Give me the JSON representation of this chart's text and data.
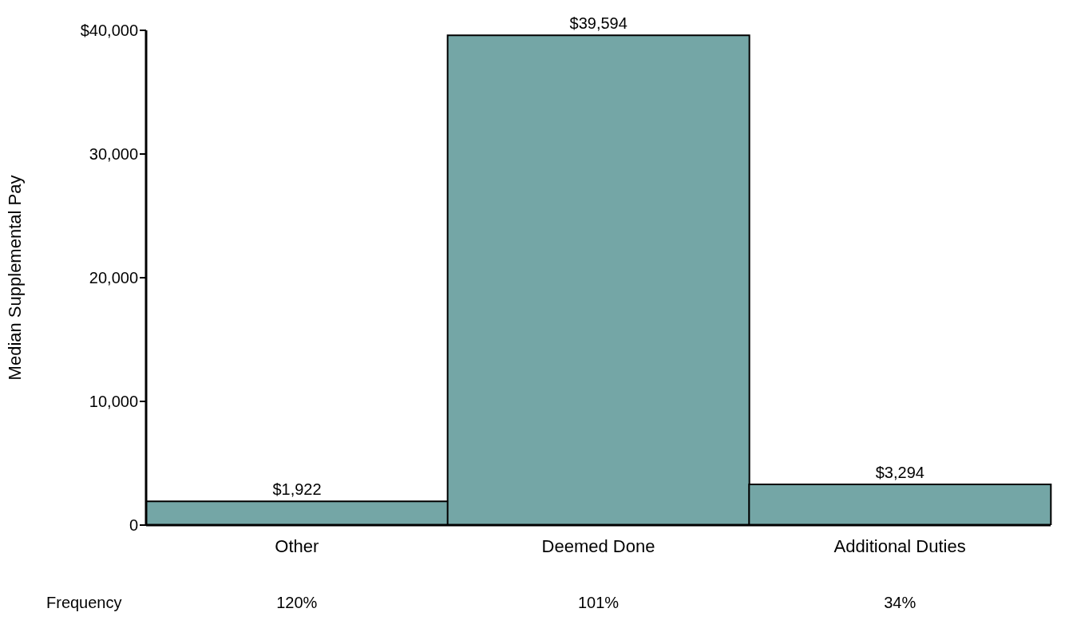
{
  "chart_data": {
    "type": "bar",
    "ylabel": "Median Supplemental Pay",
    "categories": [
      "Other",
      "Deemed Done",
      "Additional Duties"
    ],
    "values": [
      1922,
      39594,
      3294
    ],
    "value_labels": [
      "$1,922",
      "$39,594",
      "$3,294"
    ],
    "color": "#74a6a6",
    "ylim": [
      0,
      40000
    ],
    "yticks": [
      0,
      {
        "value": 10000,
        "label": "10,000"
      },
      {
        "value": 20000,
        "label": "20,000"
      },
      {
        "value": 30000,
        "label": "30,000"
      },
      {
        "value": 40000,
        "label": "$40,000"
      }
    ],
    "grid": false,
    "annotations": [
      "Frequency",
      "120%",
      "101%",
      "34%"
    ]
  }
}
